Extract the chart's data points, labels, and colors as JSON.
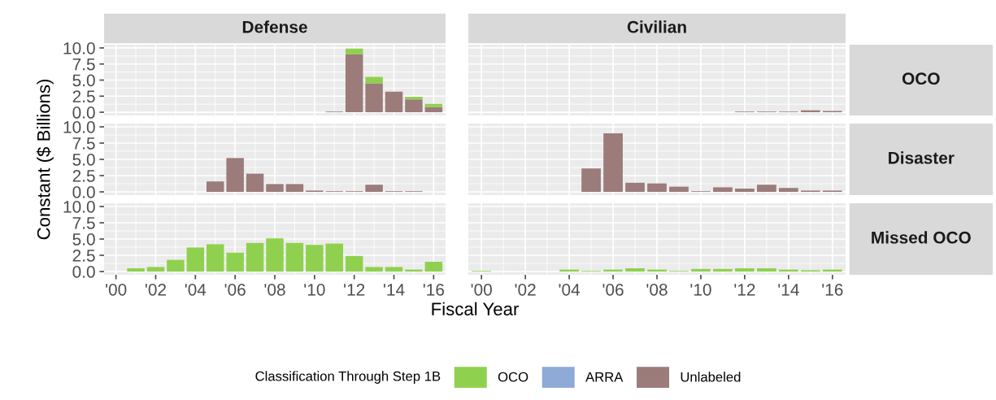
{
  "chart_data": [
    {
      "type": "bar",
      "stacked": true,
      "title": "Defense",
      "legend_title": "Classification Through Step 1B",
      "legend": "bottom",
      "grid": true,
      "tick_labels": "y",
      "x": [
        2011,
        2012,
        2013,
        2014,
        2015,
        2016
      ],
      "xlim": [
        1999.4,
        2016.6
      ],
      "ylim": [
        -0.5,
        10.5
      ],
      "xticks": [
        2000,
        2002,
        2004,
        2006,
        2008,
        2010,
        2012,
        2014,
        2016
      ],
      "yticks": [
        {
          "value": 0,
          "label": "0.0"
        },
        {
          "value": 2.5,
          "label": "2.5"
        },
        {
          "value": 5,
          "label": "5.0"
        },
        {
          "value": 7.5,
          "label": "7.5"
        },
        {
          "value": 10,
          "label": "10.0"
        }
      ],
      "series": [
        {
          "name": "Unlabeled",
          "color": "#9c7b7b",
          "values": [
            0.1,
            9.0,
            4.5,
            3.2,
            2.0,
            0.8
          ]
        },
        {
          "name": "ARRA",
          "color": "#8eaad6",
          "values": [
            null,
            null,
            null,
            null,
            null,
            null
          ]
        },
        {
          "name": "OCO",
          "color": "#8fd14f",
          "values": [
            null,
            0.9,
            1.0,
            null,
            0.4,
            0.5
          ]
        }
      ]
    },
    {
      "type": "bar",
      "stacked": true,
      "title": "Civilian",
      "y2label": "OCO",
      "grid": true,
      "tick_labels": false,
      "xlim": [
        1999.4,
        2016.6
      ],
      "ylim": [
        -0.5,
        10.5
      ],
      "xticks": [
        2000,
        2002,
        2004,
        2006,
        2008,
        2010,
        2012,
        2014,
        2016
      ],
      "yticks": [
        0,
        2.5,
        5,
        7.5,
        10
      ],
      "series": [
        {
          "color": "#9c7b7b",
          "x": [
            2012,
            2013,
            2014,
            2015,
            2016
          ],
          "values": [
            0.1,
            0.1,
            0.1,
            0.3,
            0.2
          ]
        }
      ]
    },
    {
      "type": "bar",
      "stacked": true,
      "ylabel": "Constant ($ Billions)",
      "grid": true,
      "tick_labels": "y",
      "xlim": [
        1999.4,
        2016.6
      ],
      "ylim": [
        -0.5,
        10.5
      ],
      "xticks": [
        2000,
        2002,
        2004,
        2006,
        2008,
        2010,
        2012,
        2014,
        2016
      ],
      "yticks": [
        {
          "value": 0,
          "label": "0.0"
        },
        {
          "value": 2.5,
          "label": "2.5"
        },
        {
          "value": 5,
          "label": "5.0"
        },
        {
          "value": 7.5,
          "label": "7.5"
        },
        {
          "value": 10,
          "label": "10.0"
        }
      ],
      "series": [
        {
          "color": "#9c7b7b",
          "x": [
            2005,
            2006,
            2007,
            2008,
            2009,
            2010,
            2011,
            2012,
            2013,
            2014,
            2015
          ],
          "values": [
            1.6,
            5.2,
            2.8,
            1.2,
            1.2,
            0.2,
            0.1,
            0.1,
            1.1,
            0.1,
            0.1
          ]
        }
      ]
    },
    {
      "type": "bar",
      "stacked": true,
      "y2label": "Disaster",
      "grid": true,
      "tick_labels": false,
      "xlim": [
        1999.4,
        2016.6
      ],
      "ylim": [
        -0.5,
        10.5
      ],
      "xticks": [
        2000,
        2002,
        2004,
        2006,
        2008,
        2010,
        2012,
        2014,
        2016
      ],
      "yticks": [
        0,
        2.5,
        5,
        7.5,
        10
      ],
      "series": [
        {
          "color": "#9c7b7b",
          "x": [
            2005,
            2006,
            2007,
            2008,
            2009,
            2010,
            2011,
            2012,
            2013,
            2014,
            2015,
            2016
          ],
          "values": [
            3.6,
            9.0,
            1.4,
            1.3,
            0.8,
            0.1,
            0.7,
            0.5,
            1.1,
            0.6,
            0.2,
            0.2
          ]
        }
      ]
    },
    {
      "type": "bar",
      "stacked": true,
      "xlabel": "Fiscal Year",
      "grid": true,
      "xlim": [
        1999.4,
        2016.6
      ],
      "ylim": [
        -0.5,
        10.5
      ],
      "xticks": [
        {
          "value": 2000,
          "label": "'00"
        },
        {
          "value": 2002,
          "label": "'02"
        },
        {
          "value": 2004,
          "label": "'04"
        },
        {
          "value": 2006,
          "label": "'06"
        },
        {
          "value": 2008,
          "label": "'08"
        },
        {
          "value": 2010,
          "label": "'10"
        },
        {
          "value": 2012,
          "label": "'12"
        },
        {
          "value": 2014,
          "label": "'14"
        },
        {
          "value": 2016,
          "label": "'16"
        }
      ],
      "yticks": [
        {
          "value": 0,
          "label": "0.0"
        },
        {
          "value": 2.5,
          "label": "2.5"
        },
        {
          "value": 5,
          "label": "5.0"
        },
        {
          "value": 7.5,
          "label": "7.5"
        },
        {
          "value": 10,
          "label": "10.0"
        }
      ],
      "series": [
        {
          "color": "#8fd14f",
          "x": [
            2001,
            2002,
            2003,
            2004,
            2005,
            2006,
            2007,
            2008,
            2009,
            2010,
            2011,
            2012,
            2013,
            2014,
            2015,
            2016
          ],
          "values": [
            0.5,
            0.7,
            1.8,
            3.7,
            4.2,
            2.9,
            4.4,
            5.1,
            4.4,
            4.1,
            4.3,
            2.4,
            0.7,
            0.7,
            0.3,
            1.5
          ]
        }
      ]
    },
    {
      "type": "bar",
      "stacked": true,
      "y2label": "Missed OCO",
      "grid": true,
      "tick_labels": "x",
      "xlim": [
        1999.4,
        2016.6
      ],
      "ylim": [
        -0.5,
        10.5
      ],
      "xticks": [
        {
          "value": 2000,
          "label": "'00"
        },
        {
          "value": 2002,
          "label": "'02"
        },
        {
          "value": 2004,
          "label": "'04"
        },
        {
          "value": 2006,
          "label": "'06"
        },
        {
          "value": 2008,
          "label": "'08"
        },
        {
          "value": 2010,
          "label": "'10"
        },
        {
          "value": 2012,
          "label": "'12"
        },
        {
          "value": 2014,
          "label": "'14"
        },
        {
          "value": 2016,
          "label": "'16"
        }
      ],
      "yticks": [
        0,
        2.5,
        5,
        7.5,
        10
      ],
      "series": [
        {
          "color": "#8fd14f",
          "x": [
            2000,
            2004,
            2005,
            2006,
            2007,
            2008,
            2009,
            2010,
            2011,
            2012,
            2013,
            2014,
            2015,
            2016
          ],
          "values": [
            0.1,
            0.3,
            0.1,
            0.3,
            0.5,
            0.3,
            0.1,
            0.4,
            0.4,
            0.5,
            0.5,
            0.3,
            0.2,
            0.3
          ]
        }
      ]
    }
  ]
}
